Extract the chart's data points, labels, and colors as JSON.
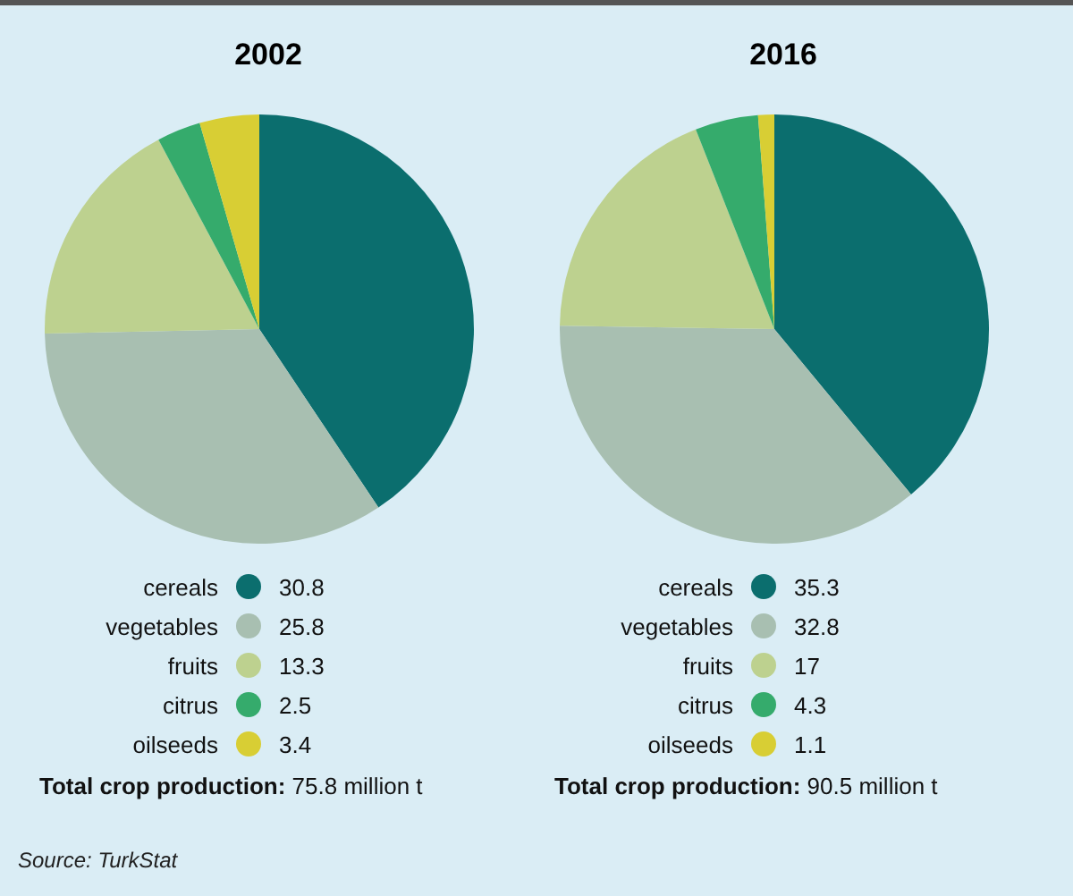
{
  "chart_data": [
    {
      "type": "pie",
      "title": "2002",
      "categories": [
        "cereals",
        "vegetables",
        "fruits",
        "citrus",
        "oilseeds"
      ],
      "values": [
        30.8,
        25.8,
        13.3,
        2.5,
        3.4
      ],
      "colors": [
        "#0b6e6e",
        "#a8bfb1",
        "#bdd18f",
        "#35ab6c",
        "#d8ce34"
      ],
      "data_labels": true,
      "legend": "bottom",
      "annotations": [
        "Total crop production: 75.8 million t",
        "Source: TurkStat"
      ]
    },
    {
      "type": "pie",
      "title": "2016",
      "categories": [
        "cereals",
        "vegetables",
        "fruits",
        "citrus",
        "oilseeds"
      ],
      "values": [
        35.3,
        32.8,
        17,
        4.3,
        1.1
      ],
      "colors": [
        "#0b6e6e",
        "#a8bfb1",
        "#bdd18f",
        "#35ab6c",
        "#d8ce34"
      ],
      "data_labels": true,
      "legend": "bottom",
      "annotations": [
        "Total crop production: 90.5 million t"
      ]
    }
  ]
}
